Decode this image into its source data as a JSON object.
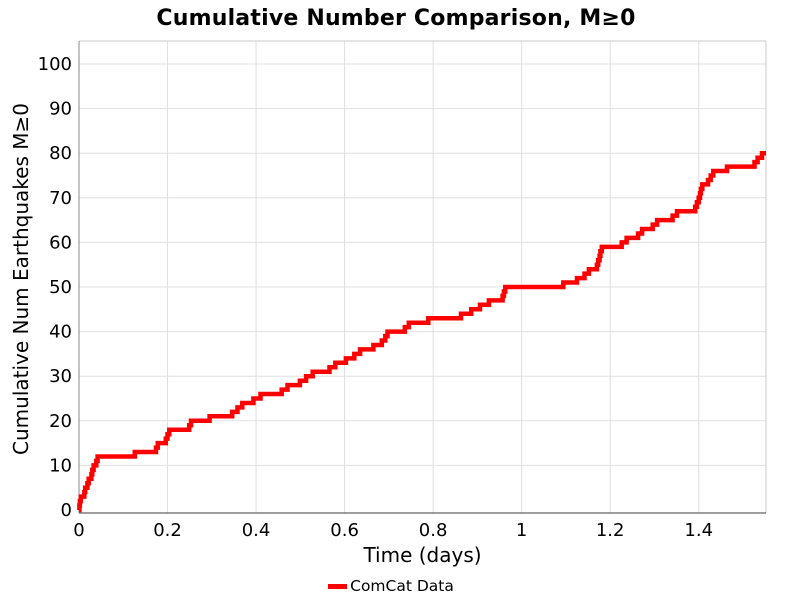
{
  "chart_data": {
    "type": "line",
    "subtype": "cumulative-step",
    "title": "Cumulative Number Comparison, M≥0",
    "xlabel": "Time (days)",
    "ylabel": "Cumulative Num Earthquakes M≥0",
    "xlim": [
      0,
      1.552
    ],
    "ylim": [
      0,
      100
    ],
    "x_ticks": [
      0,
      0.2,
      0.4,
      0.6,
      0.8,
      1,
      1.2,
      1.4
    ],
    "x_tick_labels": [
      "0",
      "0.2",
      "0.4",
      "0.6",
      "0.8",
      "1",
      "1.2",
      "1.4"
    ],
    "y_ticks": [
      0,
      10,
      20,
      30,
      40,
      50,
      60,
      70,
      80,
      90,
      100
    ],
    "y_tick_labels": [
      "0",
      "10",
      "20",
      "30",
      "40",
      "50",
      "60",
      "70",
      "80",
      "90",
      "100"
    ],
    "grid": true,
    "legend_position": "bottom-center",
    "series": [
      {
        "name": "ComCat Data",
        "color": "#FF0000",
        "line_width": 4.5,
        "start": [
          0,
          0
        ],
        "end_x": 1.552,
        "final_value": 80,
        "step_points": [
          [
            0.001,
            1
          ],
          [
            0.002,
            2
          ],
          [
            0.004,
            3
          ],
          [
            0.012,
            4
          ],
          [
            0.014,
            5
          ],
          [
            0.019,
            6
          ],
          [
            0.022,
            7
          ],
          [
            0.028,
            8
          ],
          [
            0.03,
            9
          ],
          [
            0.033,
            10
          ],
          [
            0.039,
            11
          ],
          [
            0.042,
            12
          ],
          [
            0.126,
            13
          ],
          [
            0.174,
            14
          ],
          [
            0.178,
            15
          ],
          [
            0.196,
            16
          ],
          [
            0.2,
            17
          ],
          [
            0.204,
            18
          ],
          [
            0.249,
            19
          ],
          [
            0.253,
            20
          ],
          [
            0.295,
            21
          ],
          [
            0.346,
            22
          ],
          [
            0.358,
            23
          ],
          [
            0.369,
            24
          ],
          [
            0.394,
            25
          ],
          [
            0.41,
            26
          ],
          [
            0.458,
            27
          ],
          [
            0.471,
            28
          ],
          [
            0.499,
            29
          ],
          [
            0.513,
            30
          ],
          [
            0.528,
            31
          ],
          [
            0.566,
            32
          ],
          [
            0.579,
            33
          ],
          [
            0.603,
            34
          ],
          [
            0.622,
            35
          ],
          [
            0.635,
            36
          ],
          [
            0.665,
            37
          ],
          [
            0.684,
            38
          ],
          [
            0.692,
            39
          ],
          [
            0.697,
            40
          ],
          [
            0.736,
            41
          ],
          [
            0.745,
            42
          ],
          [
            0.789,
            43
          ],
          [
            0.863,
            44
          ],
          [
            0.886,
            45
          ],
          [
            0.906,
            46
          ],
          [
            0.926,
            47
          ],
          [
            0.957,
            48
          ],
          [
            0.96,
            49
          ],
          [
            0.963,
            50
          ],
          [
            1.094,
            51
          ],
          [
            1.125,
            52
          ],
          [
            1.142,
            53
          ],
          [
            1.152,
            54
          ],
          [
            1.17,
            55
          ],
          [
            1.173,
            56
          ],
          [
            1.176,
            57
          ],
          [
            1.178,
            58
          ],
          [
            1.181,
            59
          ],
          [
            1.226,
            60
          ],
          [
            1.237,
            61
          ],
          [
            1.263,
            62
          ],
          [
            1.272,
            63
          ],
          [
            1.296,
            64
          ],
          [
            1.306,
            65
          ],
          [
            1.341,
            66
          ],
          [
            1.351,
            67
          ],
          [
            1.392,
            68
          ],
          [
            1.396,
            69
          ],
          [
            1.4,
            70
          ],
          [
            1.403,
            71
          ],
          [
            1.405,
            72
          ],
          [
            1.408,
            73
          ],
          [
            1.421,
            74
          ],
          [
            1.427,
            75
          ],
          [
            1.433,
            76
          ],
          [
            1.464,
            77
          ],
          [
            1.526,
            78
          ],
          [
            1.533,
            79
          ],
          [
            1.543,
            80
          ]
        ]
      }
    ],
    "colors": {
      "line": "#FF0000",
      "grid": "#e0e0e0",
      "axis_dark": "#3d3d3d",
      "axis_light": "#c9c9c9",
      "text": "#000000",
      "background": "#ffffff"
    }
  }
}
